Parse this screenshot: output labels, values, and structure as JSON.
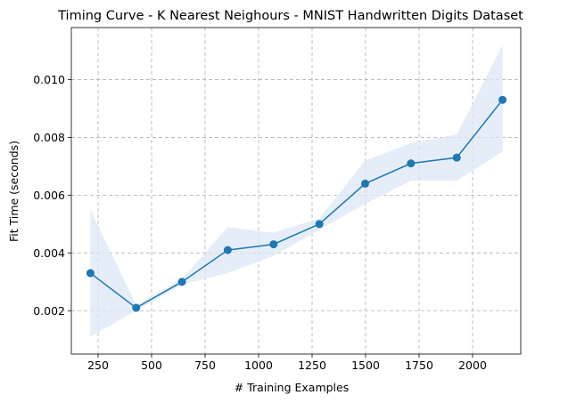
{
  "chart_data": {
    "type": "line",
    "title": "Timing Curve - K Nearest Neighours - MNIST Handwritten Digits Dataset",
    "xlabel": "# Training Examples",
    "ylabel": "Fit Time (seconds)",
    "xlim": [
      125,
      2225
    ],
    "ylim": [
      0.0005,
      0.0118
    ],
    "xticks": [
      250,
      500,
      750,
      1000,
      1250,
      1500,
      1750,
      2000
    ],
    "yticks": [
      0.002,
      0.004,
      0.006,
      0.008,
      0.01
    ],
    "xtick_labels": [
      "250",
      "500",
      "750",
      "1000",
      "1250",
      "1500",
      "1750",
      "2000"
    ],
    "ytick_labels": [
      "0.002",
      "0.004",
      "0.006",
      "0.008",
      "0.010"
    ],
    "grid": true,
    "grid_style": "dashed",
    "series": [
      {
        "color": "#1f77b4",
        "band_color": "#dce8f6",
        "x": [
          214,
          428,
          642,
          856,
          1070,
          1284,
          1498,
          1712,
          1926,
          2140
        ],
        "y": [
          0.0033,
          0.0021,
          0.003,
          0.0041,
          0.0043,
          0.005,
          0.0064,
          0.0071,
          0.0073,
          0.0093
        ],
        "y_lower": [
          0.0011,
          0.002,
          0.0029,
          0.0033,
          0.0039,
          0.0048,
          0.0057,
          0.0065,
          0.0065,
          0.0075
        ],
        "y_upper": [
          0.0055,
          0.0022,
          0.0031,
          0.0049,
          0.0047,
          0.0052,
          0.0072,
          0.0078,
          0.0081,
          0.0112
        ]
      }
    ]
  }
}
